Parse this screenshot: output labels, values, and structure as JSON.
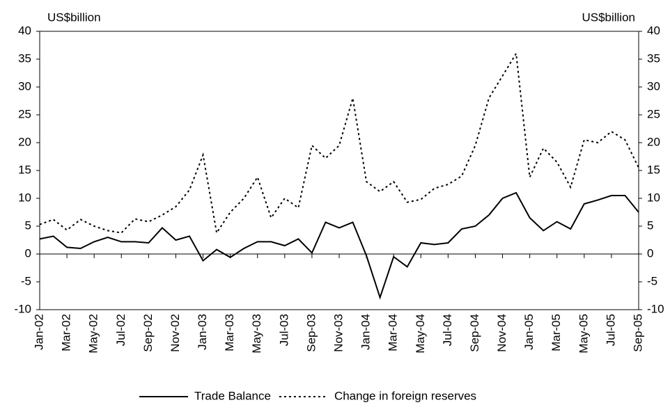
{
  "chart_data": {
    "type": "line",
    "y_label": "US$billion",
    "y2_label": "US$billion",
    "categories": [
      "Jan-02",
      null,
      "Mar-02",
      null,
      "May-02",
      null,
      "Jul-02",
      null,
      "Sep-02",
      null,
      "Nov-02",
      null,
      "Jan-03",
      null,
      "Mar-03",
      null,
      "May-03",
      null,
      "Jul-03",
      null,
      "Sep-03",
      null,
      "Nov-03",
      null,
      "Jan-04",
      null,
      "Mar-04",
      null,
      "May-04",
      null,
      "Jul-04",
      null,
      "Sep-04",
      null,
      "Nov-04",
      null,
      "Jan-05",
      null,
      "Mar-05",
      null,
      "May-05",
      null,
      "Jul-05",
      null,
      "Sep-05"
    ],
    "series": [
      {
        "name": "Trade Balance",
        "color": "#000000",
        "style": "solid",
        "values": [
          2.7,
          3.2,
          1.2,
          1.0,
          2.2,
          3.0,
          2.2,
          2.2,
          2.0,
          4.7,
          2.5,
          3.2,
          -1.2,
          0.8,
          -0.6,
          1.0,
          2.2,
          2.2,
          1.5,
          2.7,
          0.2,
          5.7,
          4.7,
          5.7,
          -0.3,
          -7.8,
          -0.5,
          -2.3,
          2.0,
          1.7,
          2.0,
          4.5,
          5.0,
          7.0,
          10.0,
          11.0,
          6.5,
          4.2,
          5.8,
          4.5,
          9.0,
          9.7,
          10.5,
          10.5,
          7.5
        ]
      },
      {
        "name": "Change in foreign reserves",
        "color": "#000000",
        "style": "dotted",
        "values": [
          5.3,
          6.2,
          4.3,
          6.2,
          5.0,
          4.2,
          3.8,
          6.3,
          5.8,
          7.0,
          8.5,
          11.5,
          17.8,
          3.8,
          7.5,
          10.0,
          13.8,
          6.5,
          10.0,
          8.3,
          19.5,
          17.2,
          19.5,
          28.0,
          13.0,
          11.2,
          13.0,
          9.3,
          9.8,
          11.8,
          12.5,
          14.0,
          19.5,
          28.0,
          32.0,
          36.0,
          13.8,
          19.0,
          16.5,
          12.0,
          20.5,
          20.0,
          22.0,
          20.5,
          15.5
        ]
      }
    ],
    "ylim": [
      -10,
      40
    ],
    "yticks": [
      -10,
      -5,
      0,
      5,
      10,
      15,
      20,
      25,
      30,
      35,
      40
    ],
    "y2lim": [
      -10,
      40
    ],
    "y2ticks": [
      -10,
      -5,
      0,
      5,
      10,
      15,
      20,
      25,
      30,
      35,
      40
    ]
  }
}
